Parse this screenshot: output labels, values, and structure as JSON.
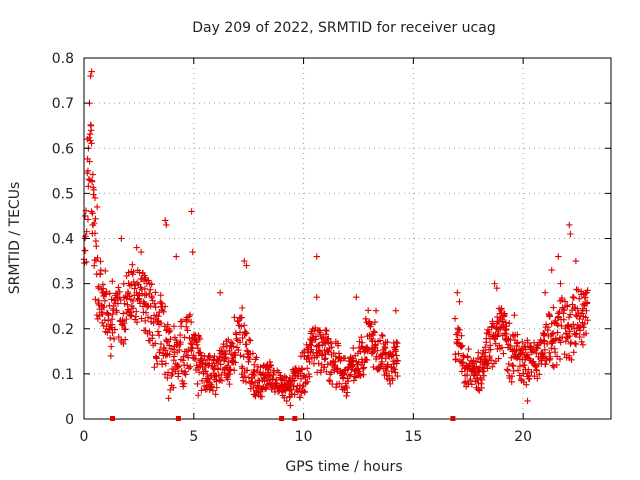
{
  "chart_data": {
    "type": "scatter",
    "title": "Day 209 of 2022, SRMTID for receiver ucag",
    "xlabel": "GPS time / hours",
    "ylabel": "SRMTID / TECUs",
    "xlim": [
      0,
      24
    ],
    "ylim": [
      0,
      0.8
    ],
    "xticks": [
      0,
      5,
      10,
      15,
      20
    ],
    "xtick_labels": [
      "0",
      "5",
      "10",
      "15",
      "20"
    ],
    "yticks": [
      0,
      0.1,
      0.2,
      0.3,
      0.4,
      0.5,
      0.6,
      0.7,
      0.8
    ],
    "ytick_labels": [
      "0",
      "0.1",
      "0.2",
      "0.3",
      "0.4",
      "0.5",
      "0.6",
      "0.7",
      "0.8"
    ],
    "grid": true,
    "marker": "+",
    "color": "#e00000",
    "gap": [
      14.3,
      16.9
    ],
    "axis_markers_x": [
      1.3,
      4.3,
      9.0,
      9.6,
      16.8
    ],
    "series": [
      {
        "name": "SRMTID",
        "profile_x": [
          0.0,
          0.1,
          0.3,
          0.6,
          1.0,
          1.5,
          2.0,
          2.5,
          3.0,
          3.5,
          3.8,
          4.2,
          4.6,
          5.0,
          5.5,
          6.0,
          6.5,
          7.0,
          7.3,
          7.6,
          8.0,
          8.5,
          9.0,
          9.5,
          10.0,
          10.5,
          11.0,
          11.5,
          12.0,
          12.5,
          13.0,
          13.5,
          14.0,
          14.3,
          16.9,
          17.3,
          17.7,
          18.1,
          18.5,
          19.0,
          19.5,
          20.0,
          20.5,
          21.0,
          21.5,
          22.0,
          22.5,
          22.9
        ],
        "profile_center": [
          0.3,
          0.4,
          0.55,
          0.28,
          0.24,
          0.22,
          0.26,
          0.27,
          0.22,
          0.2,
          0.15,
          0.12,
          0.16,
          0.14,
          0.1,
          0.1,
          0.12,
          0.16,
          0.18,
          0.11,
          0.08,
          0.09,
          0.07,
          0.08,
          0.1,
          0.15,
          0.14,
          0.12,
          0.1,
          0.11,
          0.18,
          0.14,
          0.13,
          0.12,
          0.17,
          0.13,
          0.1,
          0.11,
          0.15,
          0.19,
          0.14,
          0.13,
          0.12,
          0.15,
          0.19,
          0.22,
          0.2,
          0.24
        ],
        "profile_spread": [
          0.1,
          0.12,
          0.15,
          0.1,
          0.09,
          0.08,
          0.08,
          0.09,
          0.09,
          0.09,
          0.1,
          0.08,
          0.1,
          0.08,
          0.05,
          0.05,
          0.06,
          0.08,
          0.09,
          0.06,
          0.04,
          0.04,
          0.03,
          0.04,
          0.05,
          0.07,
          0.06,
          0.06,
          0.05,
          0.06,
          0.07,
          0.06,
          0.05,
          0.05,
          0.06,
          0.05,
          0.04,
          0.05,
          0.06,
          0.07,
          0.06,
          0.05,
          0.05,
          0.06,
          0.08,
          0.09,
          0.08,
          0.07
        ],
        "peaks": [
          [
            0.05,
            0.45
          ],
          [
            0.15,
            0.62
          ],
          [
            0.2,
            0.6
          ],
          [
            0.25,
            0.7
          ],
          [
            0.3,
            0.76
          ],
          [
            0.35,
            0.77
          ],
          [
            0.32,
            0.65
          ],
          [
            0.18,
            0.55
          ],
          [
            0.5,
            0.49
          ],
          [
            0.6,
            0.47
          ],
          [
            0.4,
            0.43
          ],
          [
            1.7,
            0.4
          ],
          [
            2.4,
            0.38
          ],
          [
            2.6,
            0.37
          ],
          [
            3.7,
            0.44
          ],
          [
            3.75,
            0.43
          ],
          [
            4.2,
            0.36
          ],
          [
            4.9,
            0.46
          ],
          [
            4.95,
            0.37
          ],
          [
            6.2,
            0.28
          ],
          [
            7.3,
            0.35
          ],
          [
            7.4,
            0.34
          ],
          [
            10.6,
            0.36
          ],
          [
            10.6,
            0.27
          ],
          [
            12.4,
            0.27
          ],
          [
            13.3,
            0.24
          ],
          [
            14.2,
            0.24
          ],
          [
            17.0,
            0.28
          ],
          [
            17.1,
            0.26
          ],
          [
            18.7,
            0.3
          ],
          [
            18.8,
            0.29
          ],
          [
            19.6,
            0.23
          ],
          [
            21.0,
            0.28
          ],
          [
            21.3,
            0.33
          ],
          [
            21.6,
            0.36
          ],
          [
            21.7,
            0.3
          ],
          [
            22.1,
            0.43
          ],
          [
            22.15,
            0.41
          ],
          [
            22.4,
            0.35
          ],
          [
            22.9,
            0.28
          ],
          [
            20.2,
            0.04
          ],
          [
            9.4,
            0.03
          ]
        ]
      }
    ]
  }
}
